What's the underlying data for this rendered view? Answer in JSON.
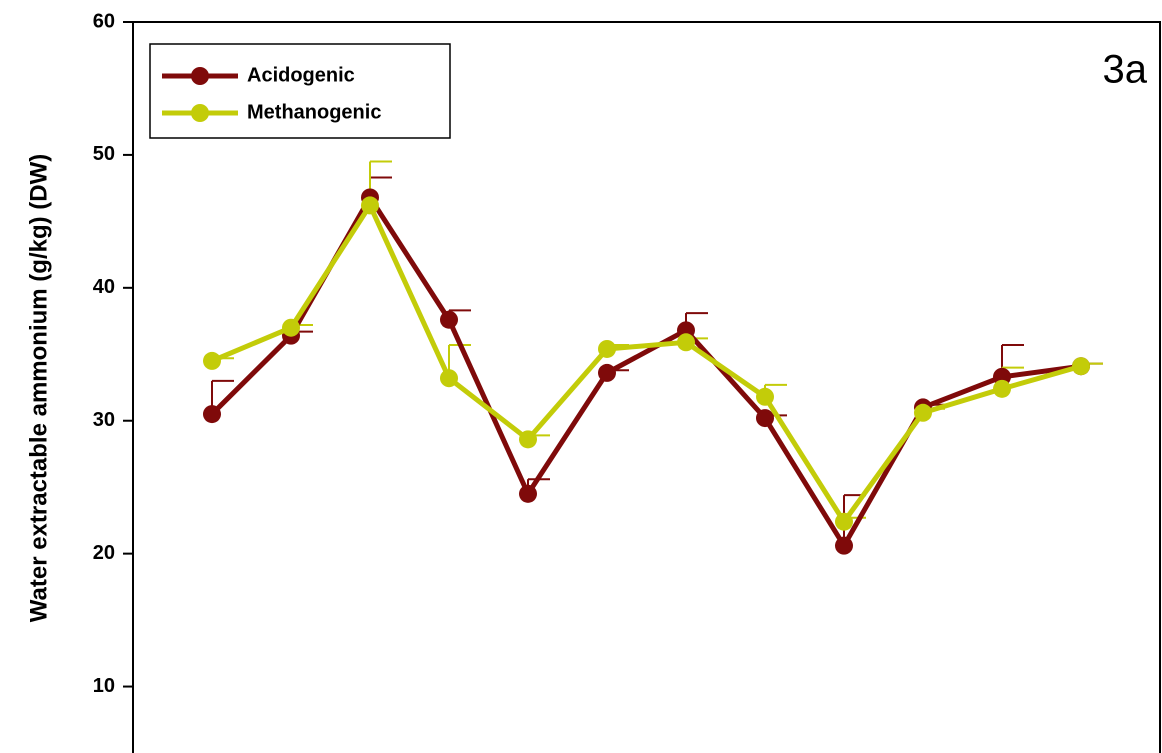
{
  "chart_data": {
    "type": "line",
    "y_label": "Water extractable ammonium (g/kg) (DW)",
    "annotation": "3a",
    "x": [
      1,
      2,
      3,
      4,
      5,
      6,
      7,
      8,
      9,
      10,
      11,
      12
    ],
    "xlim": [
      0,
      13
    ],
    "ylim": [
      5,
      60
    ],
    "yticks": [
      10,
      20,
      30,
      40,
      50,
      60
    ],
    "legend": "upper left",
    "series": [
      {
        "name": "Acidogenic",
        "color": "#7f0a0a",
        "values": [
          30.5,
          36.4,
          46.8,
          37.6,
          24.5,
          33.6,
          36.8,
          30.2,
          20.6,
          31.0,
          33.3,
          34.1
        ],
        "errors": [
          2.5,
          0.3,
          1.5,
          0.7,
          1.1,
          0.2,
          1.3,
          0.2,
          3.8,
          0.2,
          2.4,
          0.2
        ]
      },
      {
        "name": "Methanogenic",
        "color": "#c3cc09",
        "values": [
          34.5,
          37.0,
          46.2,
          33.2,
          28.6,
          35.4,
          35.9,
          31.8,
          22.4,
          30.6,
          32.4,
          34.1
        ],
        "errors": [
          0.2,
          0.2,
          3.3,
          2.5,
          0.3,
          0.3,
          0.3,
          0.9,
          0.3,
          0.3,
          1.6,
          0.2
        ]
      }
    ]
  }
}
